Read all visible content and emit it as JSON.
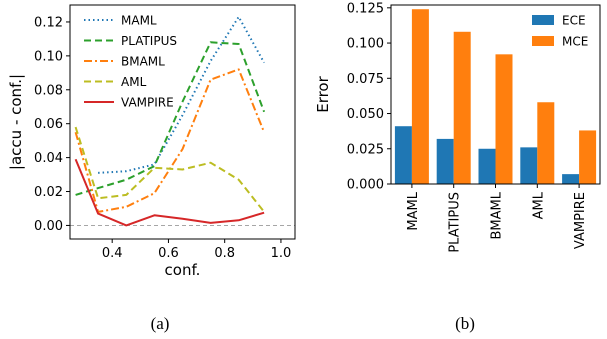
{
  "chart_data": [
    {
      "type": "line",
      "caption": "(a)",
      "xlabel": "conf.",
      "ylabel": "|accu - conf.|",
      "xlim": [
        0.25,
        1.05
      ],
      "ylim": [
        -0.008,
        0.13
      ],
      "xticks": [
        "0.4",
        "0.6",
        "0.8",
        "1.0"
      ],
      "xtick_values": [
        0.4,
        0.6,
        0.8,
        1.0
      ],
      "yticks": [
        "0.00",
        "0.02",
        "0.04",
        "0.06",
        "0.08",
        "0.10",
        "0.12"
      ],
      "ytick_values": [
        0.0,
        0.02,
        0.04,
        0.06,
        0.08,
        0.1,
        0.12
      ],
      "reference_line": {
        "y": 0.0,
        "color": "#999999",
        "style": "dashed"
      },
      "grid": false,
      "legend_position": "top-left",
      "series": [
        {
          "name": "MAML",
          "color": "#1f77b4",
          "style": "dotted",
          "x": [
            0.35,
            0.45,
            0.55,
            0.65,
            0.75,
            0.85,
            0.94
          ],
          "y": [
            0.031,
            0.032,
            0.036,
            0.065,
            0.097,
            0.123,
            0.096
          ]
        },
        {
          "name": "PLATIPUS",
          "color": "#2ca02c",
          "style": "dashed",
          "x": [
            0.27,
            0.35,
            0.45,
            0.55,
            0.65,
            0.75,
            0.85,
            0.94
          ],
          "y": [
            0.018,
            0.022,
            0.027,
            0.035,
            0.073,
            0.108,
            0.107,
            0.067
          ]
        },
        {
          "name": "BMAML",
          "color": "#ff7f0e",
          "style": "dashdot",
          "x": [
            0.27,
            0.35,
            0.45,
            0.55,
            0.65,
            0.75,
            0.85,
            0.94
          ],
          "y": [
            0.055,
            0.008,
            0.011,
            0.019,
            0.045,
            0.086,
            0.092,
            0.055
          ]
        },
        {
          "name": "AML",
          "color": "#bcbd22",
          "style": "dashed",
          "x": [
            0.27,
            0.35,
            0.45,
            0.55,
            0.65,
            0.75,
            0.85,
            0.94
          ],
          "y": [
            0.058,
            0.016,
            0.018,
            0.034,
            0.033,
            0.037,
            0.027,
            0.008
          ]
        },
        {
          "name": "VAMPIRE",
          "color": "#d62728",
          "style": "solid",
          "x": [
            0.27,
            0.35,
            0.45,
            0.55,
            0.65,
            0.75,
            0.85,
            0.94
          ],
          "y": [
            0.039,
            0.007,
            0.0,
            0.006,
            0.004,
            0.0015,
            0.003,
            0.0075
          ]
        }
      ]
    },
    {
      "type": "bar",
      "caption": "(b)",
      "xlabel": "",
      "ylabel": "Error",
      "ylim": [
        0,
        0.127
      ],
      "yticks": [
        "0.000",
        "0.025",
        "0.050",
        "0.075",
        "0.100",
        "0.125"
      ],
      "ytick_values": [
        0.0,
        0.025,
        0.05,
        0.075,
        0.1,
        0.125
      ],
      "categories": [
        "MAML",
        "PLATIPUS",
        "BMAML",
        "AML",
        "VAMPIRE"
      ],
      "category_label_rotation": "vertical",
      "grid": false,
      "legend_position": "top-right",
      "series": [
        {
          "name": "ECE",
          "color": "#1f77b4",
          "values": [
            0.041,
            0.032,
            0.025,
            0.026,
            0.007
          ]
        },
        {
          "name": "MCE",
          "color": "#ff7f0e",
          "values": [
            0.124,
            0.108,
            0.092,
            0.058,
            0.038
          ]
        }
      ]
    }
  ]
}
